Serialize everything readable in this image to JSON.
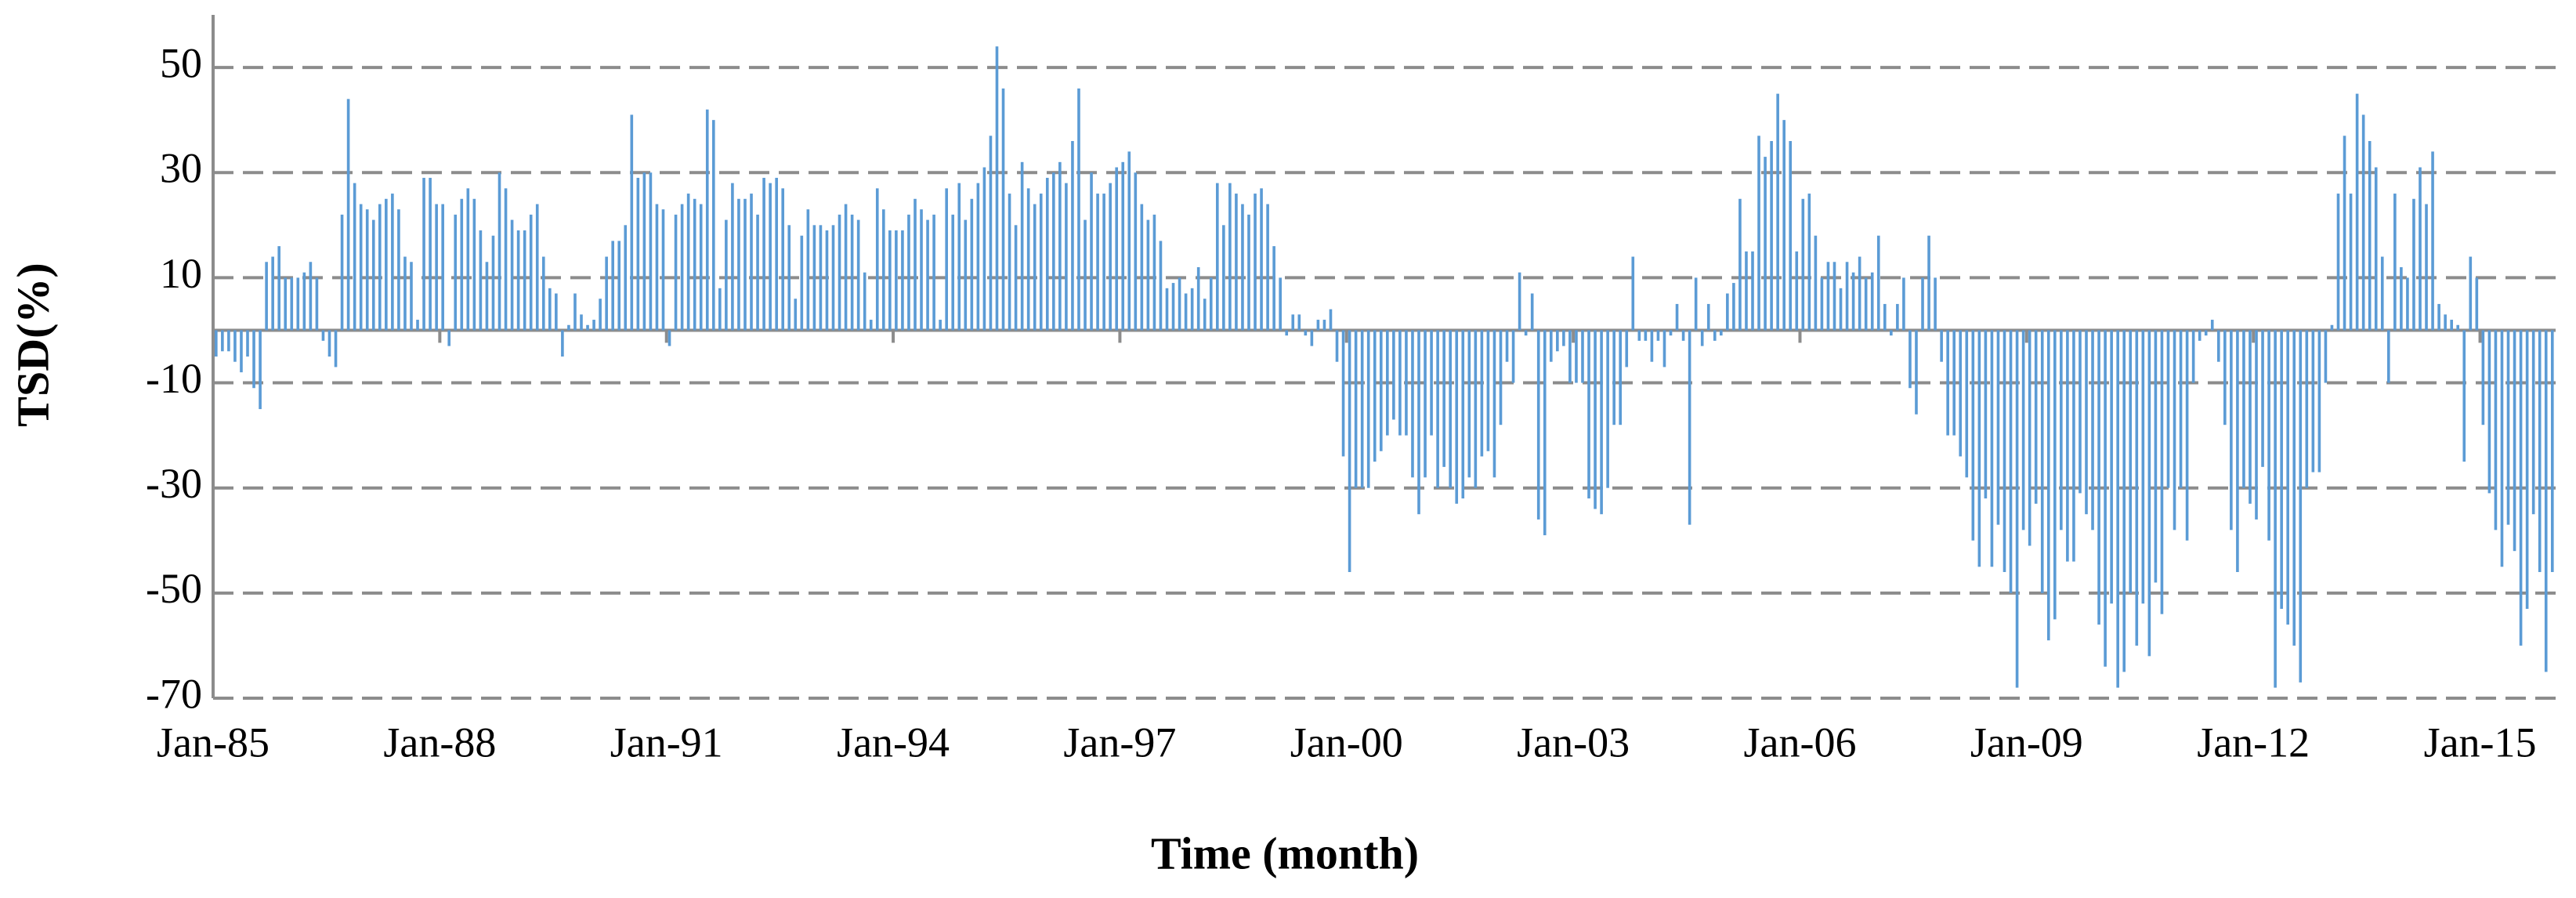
{
  "chart_data": {
    "type": "bar",
    "x_label": "Time (month)",
    "y_label": "TSD(%)",
    "color": "#5b9bd5",
    "grid": true,
    "ylim": [
      -70,
      60
    ],
    "yticks": [
      -70,
      -50,
      -30,
      -10,
      10,
      30,
      50
    ],
    "categories": [
      "Jan-85",
      null,
      null,
      null,
      null,
      null,
      null,
      null,
      null,
      null,
      null,
      null,
      null,
      null,
      null,
      null,
      null,
      null,
      null,
      null,
      null,
      null,
      null,
      null,
      null,
      null,
      null,
      null,
      null,
      null,
      null,
      null,
      null,
      null,
      null,
      null,
      "Jan-88",
      null,
      null,
      null,
      null,
      null,
      null,
      null,
      null,
      null,
      null,
      null,
      null,
      null,
      null,
      null,
      null,
      null,
      null,
      null,
      null,
      null,
      null,
      null,
      null,
      null,
      null,
      null,
      null,
      null,
      null,
      null,
      null,
      null,
      null,
      null,
      "Jan-91",
      null,
      null,
      null,
      null,
      null,
      null,
      null,
      null,
      null,
      null,
      null,
      null,
      null,
      null,
      null,
      null,
      null,
      null,
      null,
      null,
      null,
      null,
      null,
      null,
      null,
      null,
      null,
      null,
      null,
      null,
      null,
      null,
      null,
      null,
      null,
      "Jan-94",
      null,
      null,
      null,
      null,
      null,
      null,
      null,
      null,
      null,
      null,
      null,
      null,
      null,
      null,
      null,
      null,
      null,
      null,
      null,
      null,
      null,
      null,
      null,
      null,
      null,
      null,
      null,
      null,
      null,
      null,
      null,
      null,
      null,
      null,
      null,
      "Jan-97",
      null,
      null,
      null,
      null,
      null,
      null,
      null,
      null,
      null,
      null,
      null,
      null,
      null,
      null,
      null,
      null,
      null,
      null,
      null,
      null,
      null,
      null,
      null,
      null,
      null,
      null,
      null,
      null,
      null,
      null,
      null,
      null,
      null,
      null,
      null,
      "Jan-00",
      null,
      null,
      null,
      null,
      null,
      null,
      null,
      null,
      null,
      null,
      null,
      null,
      null,
      null,
      null,
      null,
      null,
      null,
      null,
      null,
      null,
      null,
      null,
      null,
      null,
      null,
      null,
      null,
      null,
      null,
      null,
      null,
      null,
      null,
      null,
      "Jan-03",
      null,
      null,
      null,
      null,
      null,
      null,
      null,
      null,
      null,
      null,
      null,
      null,
      null,
      null,
      null,
      null,
      null,
      null,
      null,
      null,
      null,
      null,
      null,
      null,
      null,
      null,
      null,
      null,
      null,
      null,
      null,
      null,
      null,
      null,
      null,
      "Jan-06",
      null,
      null,
      null,
      null,
      null,
      null,
      null,
      null,
      null,
      null,
      null,
      null,
      null,
      null,
      null,
      null,
      null,
      null,
      null,
      null,
      null,
      null,
      null,
      null,
      null,
      null,
      null,
      null,
      null,
      null,
      null,
      null,
      null,
      null,
      null,
      "Jan-09",
      null,
      null,
      null,
      null,
      null,
      null,
      null,
      null,
      null,
      null,
      null,
      null,
      null,
      null,
      null,
      null,
      null,
      null,
      null,
      null,
      null,
      null,
      null,
      null,
      null,
      null,
      null,
      null,
      null,
      null,
      null,
      null,
      null,
      null,
      null,
      "Jan-12",
      null,
      null,
      null,
      null,
      null,
      null,
      null,
      null,
      null,
      null,
      null,
      null,
      null,
      null,
      null,
      null,
      null,
      null,
      null,
      null,
      null,
      null,
      null,
      null,
      null,
      null,
      null,
      null,
      null,
      null,
      null,
      null,
      null,
      null,
      null,
      "Jan-15",
      null,
      null,
      null,
      null,
      null,
      null,
      null,
      null,
      null,
      null,
      null
    ],
    "values": [
      -5,
      -4,
      -4,
      -6,
      -8,
      -5,
      -11,
      -15,
      13,
      14,
      16,
      10,
      10,
      10,
      11,
      13,
      10,
      -2,
      -5,
      -7,
      22,
      44,
      28,
      24,
      23,
      21,
      24,
      25,
      26,
      23,
      14,
      13,
      2,
      29,
      29,
      24,
      24,
      -3,
      22,
      25,
      27,
      25,
      19,
      13,
      18,
      30,
      27,
      21,
      19,
      19,
      22,
      24,
      14,
      8,
      7,
      -5,
      1,
      7,
      3,
      1,
      2,
      6,
      14,
      17,
      17,
      20,
      41,
      29,
      30,
      30,
      24,
      23,
      -3,
      22,
      24,
      26,
      25,
      24,
      42,
      40,
      8,
      21,
      28,
      25,
      25,
      26,
      22,
      29,
      28,
      29,
      27,
      20,
      6,
      18,
      23,
      20,
      20,
      19,
      20,
      22,
      24,
      22,
      21,
      11,
      2,
      27,
      23,
      19,
      19,
      19,
      22,
      25,
      23,
      21,
      22,
      2,
      27,
      22,
      28,
      21,
      25,
      28,
      31,
      37,
      54,
      46,
      26,
      20,
      32,
      27,
      24,
      26,
      29,
      30,
      32,
      28,
      36,
      46,
      21,
      30,
      26,
      26,
      28,
      31,
      32,
      34,
      30,
      24,
      21,
      22,
      17,
      8,
      9,
      10,
      7,
      8,
      12,
      6,
      10,
      28,
      20,
      28,
      26,
      24,
      22,
      26,
      27,
      24,
      16,
      10,
      -1,
      3,
      3,
      -1,
      -3,
      2,
      2,
      4,
      -6,
      -24,
      -46,
      -30,
      -30,
      -30,
      -25,
      -23,
      -20,
      -17,
      -20,
      -20,
      -28,
      -35,
      -28,
      -20,
      -30,
      -26,
      -30,
      -33,
      -32,
      -28,
      -30,
      -24,
      -23,
      -28,
      -18,
      -6,
      -10,
      11,
      -1,
      7,
      -36,
      -39,
      -6,
      -4,
      -3,
      -10,
      -10,
      -10,
      -32,
      -34,
      -35,
      -30,
      -18,
      -18,
      -7,
      14,
      -2,
      -2,
      -6,
      -2,
      -7,
      -1,
      5,
      -2,
      -37,
      10,
      -3,
      5,
      -2,
      -1,
      7,
      9,
      25,
      15,
      15,
      37,
      33,
      36,
      45,
      40,
      36,
      15,
      25,
      26,
      18,
      10,
      13,
      13,
      8,
      13,
      11,
      14,
      10,
      11,
      18,
      5,
      -1,
      5,
      10,
      -11,
      -16,
      10,
      18,
      10,
      -6,
      -20,
      -20,
      -24,
      -28,
      -40,
      -45,
      -32,
      -45,
      -37,
      -46,
      -50,
      -68,
      -38,
      -41,
      -33,
      -50,
      -59,
      -55,
      -38,
      -44,
      -44,
      -31,
      -35,
      -38,
      -56,
      -64,
      -52,
      -68,
      -65,
      -50,
      -60,
      -52,
      -62,
      -48,
      -54,
      -30,
      -38,
      -30,
      -40,
      -10,
      -2,
      -1,
      2,
      -6,
      -18,
      -38,
      -46,
      -30,
      -33,
      -36,
      -26,
      -40,
      -68,
      -53,
      -56,
      -60,
      -67,
      -30,
      -27,
      -27,
      -10,
      1,
      26,
      37,
      26,
      45,
      41,
      36,
      31,
      14,
      -10,
      26,
      12,
      10,
      25,
      31,
      24,
      34,
      5,
      3,
      2,
      1,
      -25,
      14,
      10,
      -18,
      -31,
      -38,
      -45,
      -37,
      -42,
      -60,
      -53,
      -35,
      -46,
      -65,
      -46
    ]
  }
}
